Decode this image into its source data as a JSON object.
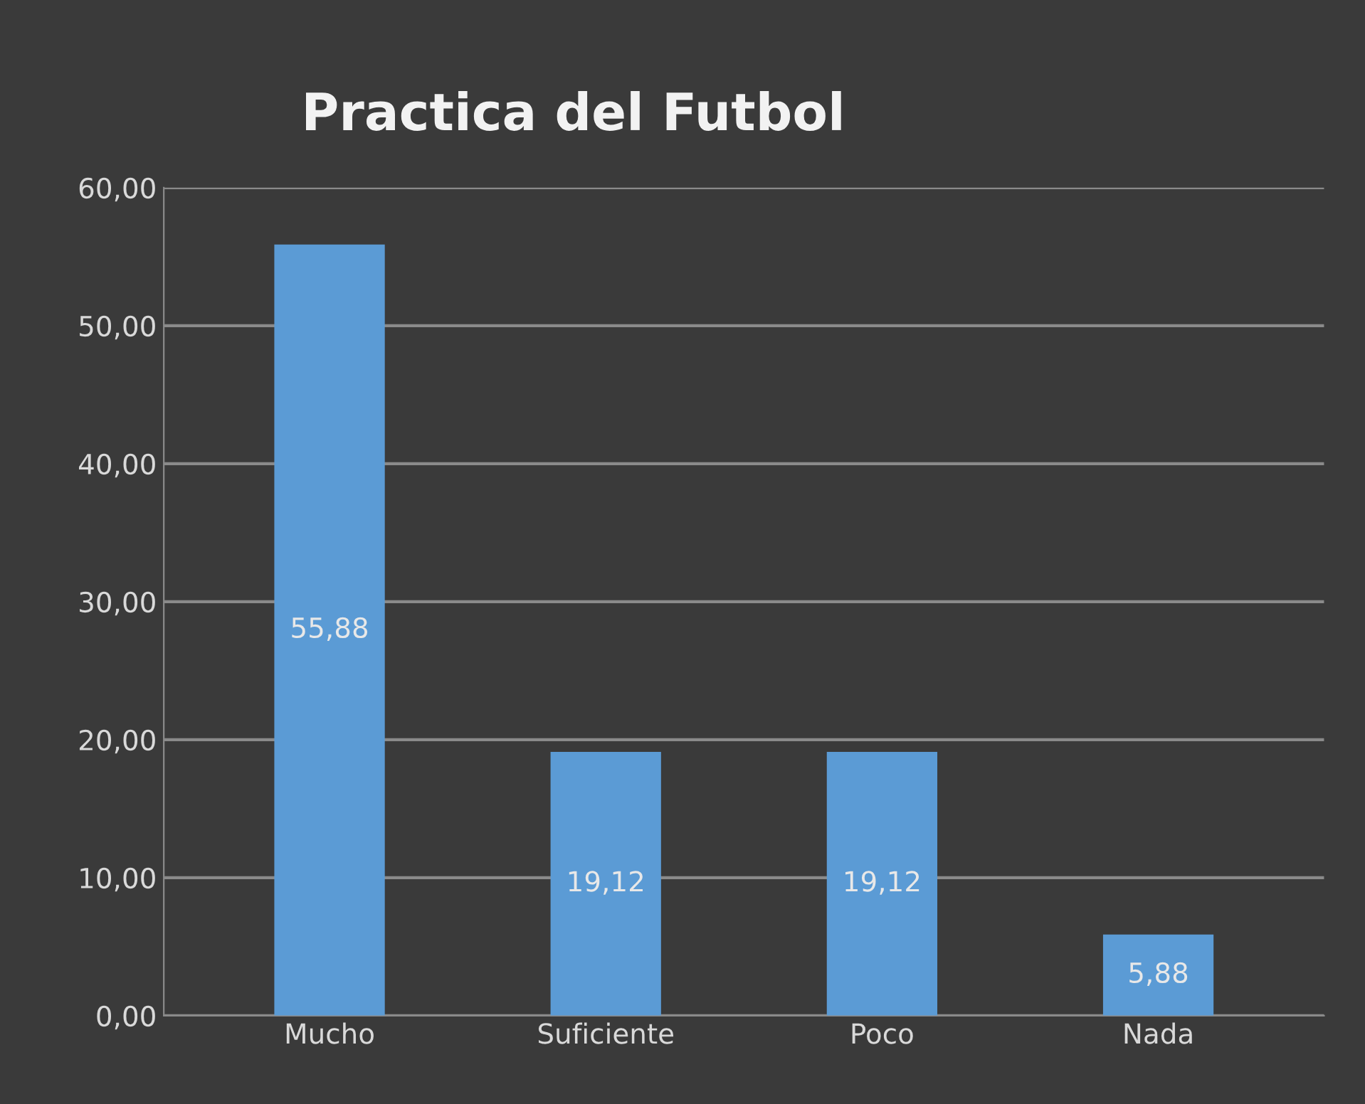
{
  "chart_data": {
    "type": "bar",
    "title": "Practica del Futbol",
    "categories": [
      "Mucho",
      "Suficiente",
      "Poco",
      "Nada"
    ],
    "values": [
      55.88,
      19.12,
      19.12,
      5.88
    ],
    "value_labels": [
      "55,88",
      "19,12",
      "19,12",
      "5,88"
    ],
    "color": "#5b9bd5",
    "ylim": [
      0,
      60
    ],
    "yticks": [
      {
        "value": 0,
        "label": "0,00"
      },
      {
        "value": 10,
        "label": "10,00"
      },
      {
        "value": 20,
        "label": "20,00"
      },
      {
        "value": 30,
        "label": "30,00"
      },
      {
        "value": 40,
        "label": "40,00"
      },
      {
        "value": 50,
        "label": "50,00"
      },
      {
        "value": 60,
        "label": "60,00"
      }
    ],
    "grid": "y",
    "legend": false
  }
}
